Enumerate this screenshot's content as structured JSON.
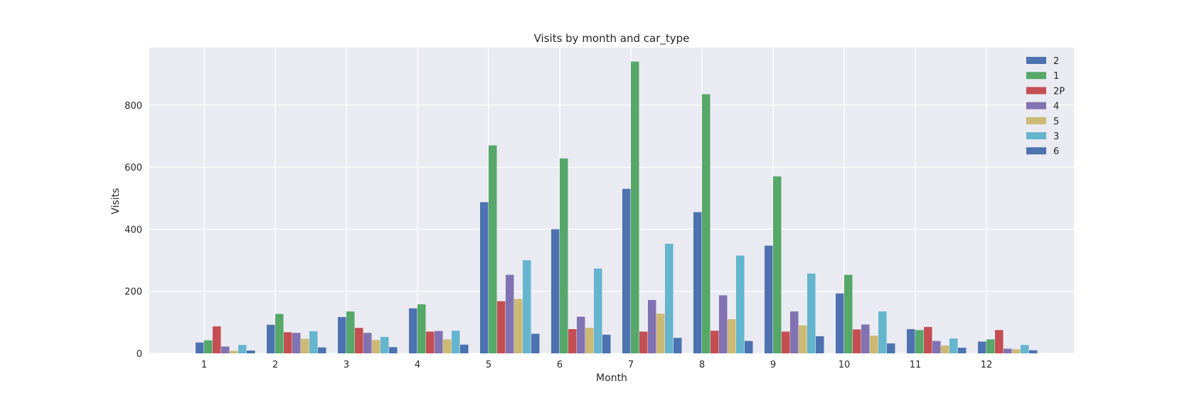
{
  "chart_data": {
    "type": "bar",
    "title": "Visits by month and car_type",
    "xlabel": "Month",
    "ylabel": "Visits",
    "categories": [
      "1",
      "2",
      "3",
      "4",
      "5",
      "6",
      "7",
      "8",
      "9",
      "10",
      "11",
      "12"
    ],
    "ylim": [
      0,
      985
    ],
    "yticks": [
      0,
      200,
      400,
      600,
      800
    ],
    "grid": true,
    "legend_position": "top-right",
    "series": [
      {
        "name": "2",
        "color": "#4c72b0",
        "values": [
          35,
          92,
          117,
          145,
          487,
          400,
          530,
          455,
          347,
          193,
          78,
          38
        ]
      },
      {
        "name": "1",
        "color": "#55a868",
        "values": [
          42,
          127,
          135,
          158,
          670,
          628,
          940,
          835,
          570,
          253,
          75,
          45
        ]
      },
      {
        "name": "2P",
        "color": "#c44e52",
        "values": [
          87,
          68,
          82,
          70,
          168,
          78,
          70,
          73,
          70,
          77,
          85,
          75
        ]
      },
      {
        "name": "4",
        "color": "#8172b2",
        "values": [
          22,
          66,
          66,
          72,
          253,
          118,
          172,
          187,
          135,
          93,
          40,
          15
        ]
      },
      {
        "name": "5",
        "color": "#ccb974",
        "values": [
          8,
          47,
          43,
          45,
          175,
          82,
          128,
          110,
          90,
          57,
          25,
          13
        ]
      },
      {
        "name": "3",
        "color": "#64b5cd",
        "values": [
          27,
          71,
          53,
          73,
          300,
          273,
          353,
          315,
          257,
          135,
          48,
          27
        ]
      },
      {
        "name": "6",
        "color": "#4c72b0",
        "values": [
          9,
          19,
          20,
          28,
          63,
          60,
          50,
          40,
          55,
          32,
          18,
          10
        ]
      }
    ]
  }
}
